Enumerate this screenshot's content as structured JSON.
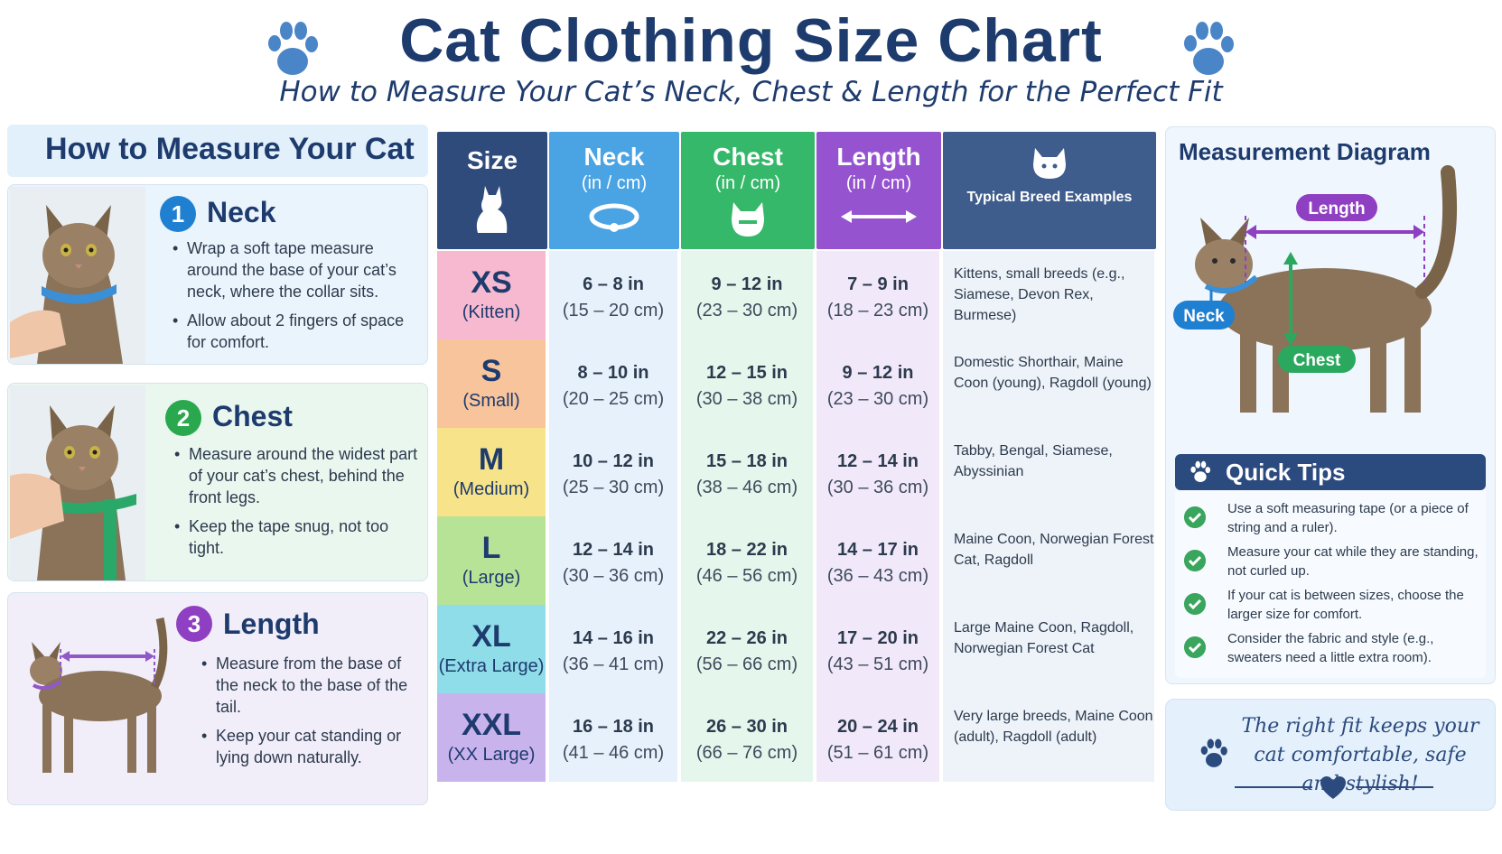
{
  "header": {
    "title": "Cat Clothing  Size Chart",
    "subtitle": "How to Measure Your Cat’s Neck, Chest & Length for the Perfect Fit",
    "paw_icon": "paw-icon",
    "accent": "#1e3b6e",
    "paw_color": "#4a86c7"
  },
  "how_to": {
    "title": "How to Measure Your Cat",
    "steps": [
      {
        "number": "1",
        "name": "Neck",
        "color": "#1f7fd1",
        "bullets": [
          "Wrap a soft tape measure around the base of your cat’s neck, where the collar sits.",
          "Allow about 2 fingers of space for comfort."
        ]
      },
      {
        "number": "2",
        "name": "Chest",
        "color": "#29a84e",
        "bullets": [
          "Measure around the widest part of your cat’s chest, behind the front legs.",
          "Keep the tape snug, not too tight."
        ]
      },
      {
        "number": "3",
        "name": "Length",
        "color": "#8e3fc2",
        "bullets": [
          "Measure from the base of the neck to the base of the tail.",
          "Keep your cat standing or lying down naturally."
        ]
      }
    ]
  },
  "table": {
    "headers": {
      "size": "Size",
      "neck": "Neck",
      "neck_unit": "(in / cm)",
      "chest": "Chest",
      "chest_unit": "(in / cm)",
      "length": "Length",
      "length_unit": "(in / cm)",
      "breeds": "Typical Breed Examples"
    },
    "header_colors": {
      "size": "#2f4b7c",
      "neck": "#4aa3e3",
      "chest": "#35b86a",
      "length": "#9553cf",
      "breeds": "#3e5c8c"
    },
    "rows": [
      {
        "code": "XS",
        "label": "(Kitten)",
        "neck_in": "6 – 8 in",
        "neck_cm": "(15 – 20 cm)",
        "chest_in": "9 – 12 in",
        "chest_cm": "(23 – 30 cm)",
        "length_in": "7 – 9 in",
        "length_cm": "(18 – 23 cm)",
        "breeds": "Kittens, small breeds (e.g., Siamese, Devon Rex, Burmese)",
        "color": "#f6b9cf"
      },
      {
        "code": "S",
        "label": "(Small)",
        "neck_in": "8 – 10 in",
        "neck_cm": "(20 – 25 cm)",
        "chest_in": "12 – 15 in",
        "chest_cm": "(30 – 38 cm)",
        "length_in": "9 – 12 in",
        "length_cm": "(23 – 30 cm)",
        "breeds": "Domestic Shorthair, Maine Coon (young), Ragdoll (young)",
        "color": "#f8c49b"
      },
      {
        "code": "M",
        "label": "(Medium)",
        "neck_in": "10 – 12 in",
        "neck_cm": "(25 – 30 cm)",
        "chest_in": "15 – 18 in",
        "chest_cm": "(38 – 46 cm)",
        "length_in": "12 – 14 in",
        "length_cm": "(30 – 36 cm)",
        "breeds": "Tabby, Bengal, Siamese, Abyssinian",
        "color": "#f7e38a"
      },
      {
        "code": "L",
        "label": "(Large)",
        "neck_in": "12 – 14 in",
        "neck_cm": "(30 – 36 cm)",
        "chest_in": "18 – 22 in",
        "chest_cm": "(46 – 56 cm)",
        "length_in": "14 – 17 in",
        "length_cm": "(36 – 43 cm)",
        "breeds": "Maine Coon, Norwegian Forest Cat, Ragdoll",
        "color": "#b7e397"
      },
      {
        "code": "XL",
        "label": "(Extra Large)",
        "neck_in": "14 – 16 in",
        "neck_cm": "(36 – 41 cm)",
        "chest_in": "22 – 26 in",
        "chest_cm": "(56 – 66 cm)",
        "length_in": "17 – 20 in",
        "length_cm": "(43 – 51 cm)",
        "breeds": "Large Maine Coon, Ragdoll, Norwegian Forest Cat",
        "color": "#8fdde8"
      },
      {
        "code": "XXL",
        "label": "(XX Large)",
        "neck_in": "16 – 18 in",
        "neck_cm": "(41 – 46 cm)",
        "chest_in": "26 – 30 in",
        "chest_cm": "(66 – 76 cm)",
        "length_in": "20 – 24 in",
        "length_cm": "(51 – 61 cm)",
        "breeds": "Very large breeds, Maine Coon (adult), Ragdoll (adult)",
        "color": "#c9b3ec"
      }
    ],
    "column_tints": {
      "neck": "#e6f1fb",
      "chest": "#e5f6ec",
      "length": "#f1e9fa",
      "breeds": "#eef3f9"
    }
  },
  "diagram": {
    "title": "Measurement Diagram",
    "length_label": "Length",
    "neck_label": "Neck",
    "chest_label": "Chest"
  },
  "tips": {
    "title": "Quick Tips",
    "items": [
      "Use a soft measuring tape (or a piece of string and a ruler).",
      "Measure your cat while they are standing, not curled up.",
      "If your cat is between sizes, choose the larger size for comfort.",
      "Consider the fabric and style (e.g., sweaters need a little extra room)."
    ]
  },
  "quote": {
    "text": "The right fit keeps your cat comfortable, safe and stylish!",
    "heart_icon": "heart-icon"
  }
}
